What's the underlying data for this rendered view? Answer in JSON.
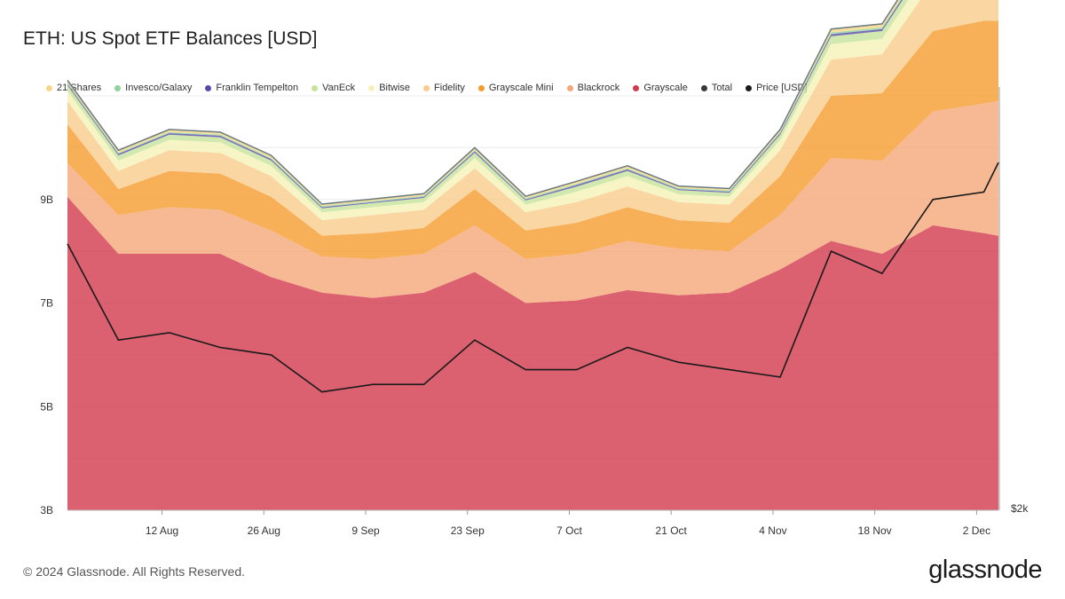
{
  "title": "ETH: US Spot ETF Balances [USD]",
  "footer": "© 2024 Glassnode. All Rights Reserved.",
  "logo": "glassnode",
  "chart_data": {
    "type": "area",
    "stacked": true,
    "title": "ETH: US Spot ETF Balances [USD]",
    "x_ticks": [
      "12 Aug",
      "26 Aug",
      "9 Sep",
      "23 Sep",
      "7 Oct",
      "21 Oct",
      "4 Nov",
      "18 Nov",
      "2 Dec"
    ],
    "x_range": [
      "2024-07-30",
      "2024-12-05"
    ],
    "y_ticks": [
      "3B",
      "5B",
      "7B",
      "9B"
    ],
    "y_range": [
      3,
      11
    ],
    "y_unit": "B USD",
    "y2_ticks": [
      "$2k"
    ],
    "grid": true,
    "legend_position": "top",
    "legend": [
      {
        "name": "21 Shares",
        "color": "#f4d888"
      },
      {
        "name": "Invesco/Galaxy",
        "color": "#8fd3a0"
      },
      {
        "name": "Franklin Tempelton",
        "color": "#5a4aa8"
      },
      {
        "name": "VanEck",
        "color": "#c6e39a"
      },
      {
        "name": "Bitwise",
        "color": "#f5f2b8"
      },
      {
        "name": "Fidelity",
        "color": "#f9cc8c"
      },
      {
        "name": "Grayscale Mini",
        "color": "#f59b2e"
      },
      {
        "name": "Blackrock",
        "color": "#f5a878"
      },
      {
        "name": "Grayscale",
        "color": "#d23a4c"
      },
      {
        "name": "Total",
        "color": "#3a3a3a"
      },
      {
        "name": "Price [USD]",
        "color": "#1a1a1a"
      }
    ],
    "x": [
      "2024-07-30",
      "2024-08-06",
      "2024-08-13",
      "2024-08-20",
      "2024-08-27",
      "2024-09-03",
      "2024-09-10",
      "2024-09-17",
      "2024-09-24",
      "2024-10-01",
      "2024-10-08",
      "2024-10-15",
      "2024-10-22",
      "2024-10-29",
      "2024-11-05",
      "2024-11-12",
      "2024-11-19",
      "2024-11-26",
      "2024-12-03",
      "2024-12-05"
    ],
    "series": [
      {
        "name": "Grayscale",
        "values": [
          6.05,
          4.95,
          4.95,
          4.95,
          4.5,
          4.2,
          4.1,
          4.2,
          4.6,
          4.0,
          4.05,
          4.25,
          4.15,
          4.2,
          4.65,
          5.2,
          4.95,
          5.5,
          5.35,
          5.3
        ]
      },
      {
        "name": "Blackrock",
        "values": [
          0.65,
          0.75,
          0.9,
          0.85,
          0.9,
          0.7,
          0.75,
          0.75,
          0.9,
          0.85,
          0.9,
          0.95,
          0.9,
          0.8,
          1.05,
          1.6,
          1.8,
          2.2,
          2.5,
          2.6
        ]
      },
      {
        "name": "Grayscale Mini",
        "values": [
          0.75,
          0.5,
          0.7,
          0.7,
          0.65,
          0.4,
          0.5,
          0.5,
          0.7,
          0.55,
          0.6,
          0.65,
          0.55,
          0.55,
          0.75,
          1.2,
          1.3,
          1.55,
          1.6,
          1.55
        ]
      },
      {
        "name": "Fidelity",
        "values": [
          0.45,
          0.35,
          0.4,
          0.4,
          0.4,
          0.3,
          0.35,
          0.35,
          0.4,
          0.35,
          0.4,
          0.4,
          0.35,
          0.35,
          0.5,
          0.7,
          0.75,
          0.95,
          1.0,
          1.05
        ]
      },
      {
        "name": "Bitwise",
        "values": [
          0.2,
          0.2,
          0.2,
          0.2,
          0.2,
          0.15,
          0.15,
          0.15,
          0.2,
          0.15,
          0.2,
          0.2,
          0.15,
          0.15,
          0.2,
          0.3,
          0.3,
          0.35,
          0.35,
          0.4
        ]
      },
      {
        "name": "VanEck",
        "values": [
          0.1,
          0.1,
          0.1,
          0.1,
          0.1,
          0.08,
          0.08,
          0.08,
          0.1,
          0.08,
          0.1,
          0.1,
          0.08,
          0.08,
          0.1,
          0.15,
          0.15,
          0.18,
          0.2,
          0.2
        ]
      },
      {
        "name": "Franklin Tempelton",
        "values": [
          0.03,
          0.03,
          0.03,
          0.03,
          0.03,
          0.02,
          0.02,
          0.02,
          0.03,
          0.02,
          0.03,
          0.03,
          0.02,
          0.02,
          0.03,
          0.04,
          0.04,
          0.05,
          0.05,
          0.05
        ]
      },
      {
        "name": "Invesco/Galaxy",
        "values": [
          0.02,
          0.02,
          0.02,
          0.02,
          0.02,
          0.02,
          0.02,
          0.02,
          0.02,
          0.02,
          0.02,
          0.02,
          0.02,
          0.02,
          0.02,
          0.03,
          0.03,
          0.04,
          0.04,
          0.04
        ]
      },
      {
        "name": "21 Shares",
        "values": [
          0.05,
          0.05,
          0.05,
          0.05,
          0.05,
          0.04,
          0.04,
          0.04,
          0.05,
          0.04,
          0.05,
          0.05,
          0.04,
          0.04,
          0.05,
          0.07,
          0.07,
          0.08,
          0.09,
          0.1
        ]
      }
    ],
    "price_series": {
      "name": "Price [USD]",
      "values": [
        3300,
        2650,
        2700,
        2600,
        2550,
        2300,
        2350,
        2350,
        2650,
        2450,
        2450,
        2600,
        2500,
        2450,
        2400,
        3250,
        3100,
        3600,
        3650,
        3850
      ]
    }
  }
}
